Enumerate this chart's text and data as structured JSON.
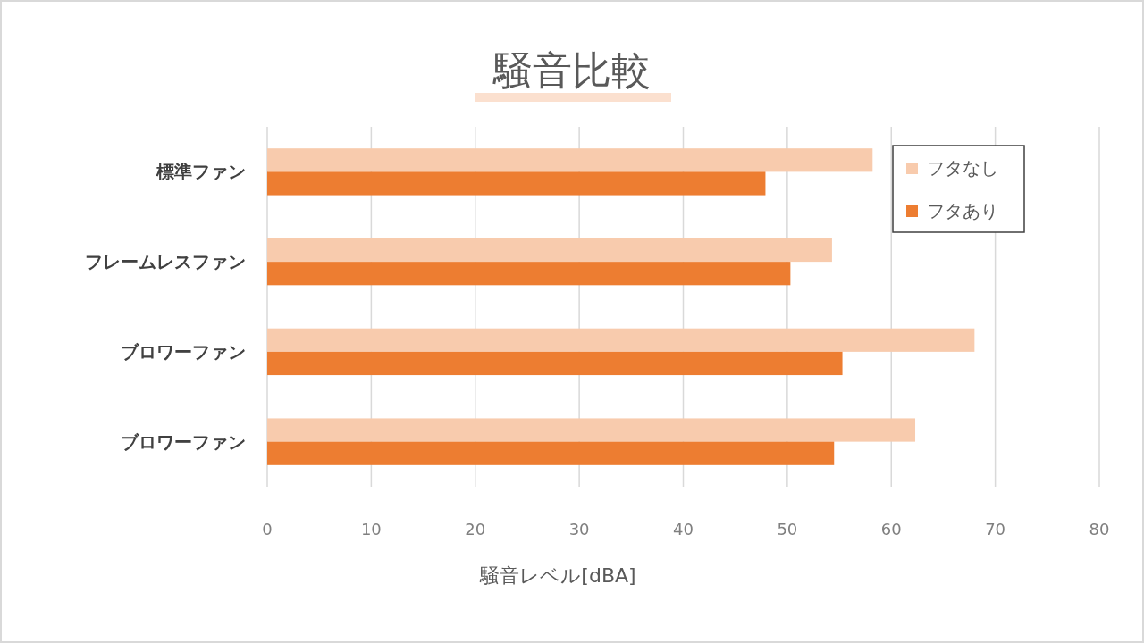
{
  "chart_data": {
    "type": "bar",
    "orientation": "horizontal",
    "title": "騒音比較",
    "xlabel": "騒音レベル[dBA]",
    "categories": [
      "標準ファン",
      "フレームレスファン",
      "ブロワーファン",
      "ブロワーファン"
    ],
    "series": [
      {
        "name": "フタなし",
        "color": "#f8cbad",
        "values": [
          58.2,
          54.3,
          68.0,
          62.3
        ]
      },
      {
        "name": "フタあり",
        "color": "#ed7d31",
        "values": [
          47.9,
          50.3,
          55.3,
          54.5
        ]
      }
    ],
    "xlim": [
      0,
      80
    ],
    "xticks": [
      0,
      10,
      20,
      30,
      40,
      50,
      60,
      70,
      80
    ],
    "grid": "x",
    "legend": "top right"
  }
}
